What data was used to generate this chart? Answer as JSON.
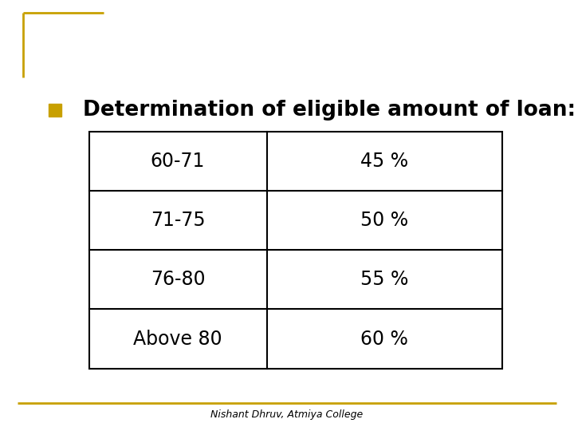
{
  "title": "Determination of eligible amount of loan:",
  "bullet_color": "#C8A000",
  "title_fontsize": 19,
  "title_font": "DejaVu Sans",
  "table_data": [
    [
      "60-71",
      "45 %"
    ],
    [
      "71-75",
      "50 %"
    ],
    [
      "76-80",
      "55 %"
    ],
    [
      "Above 80",
      "60 %"
    ]
  ],
  "table_fontsize": 17,
  "footer_text": "Nishant Dhruv, Atmiya College",
  "footer_fontsize": 9,
  "background_color": "#ffffff",
  "table_border_color": "#000000",
  "slide_border_color": "#C8A000"
}
